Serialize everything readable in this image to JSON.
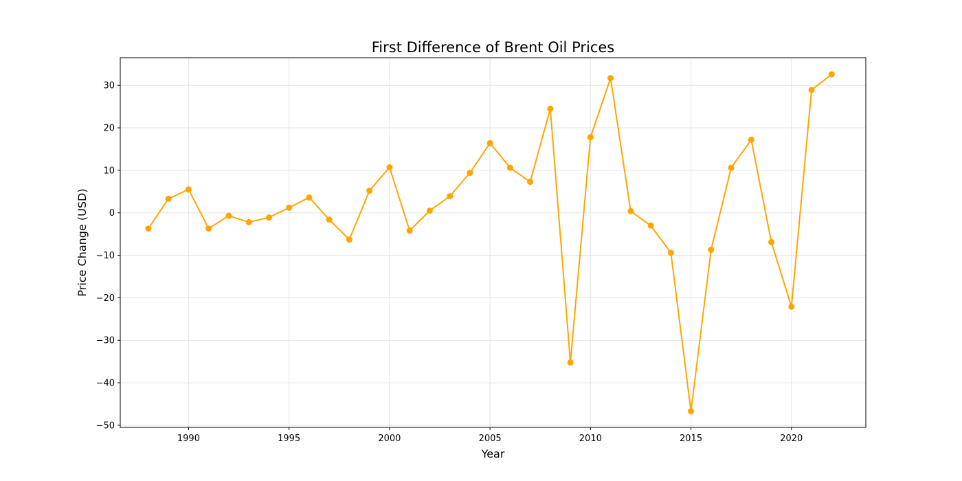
{
  "chart_data": {
    "type": "line",
    "title": "First Difference of Brent Oil Prices",
    "xlabel": "Year",
    "ylabel": "Price Change (USD)",
    "xlim": [
      1986.6,
      2023.7
    ],
    "ylim": [
      -50.5,
      36.5
    ],
    "xticks": [
      1990,
      1995,
      2000,
      2005,
      2010,
      2015,
      2020
    ],
    "yticks": [
      -50,
      -40,
      -30,
      -20,
      -10,
      0,
      10,
      20,
      30
    ],
    "grid": true,
    "color": "#ffa500",
    "marker": "circle",
    "series": [
      {
        "x": [
          1988,
          1989,
          1990,
          1991,
          1992,
          1993,
          1994,
          1995,
          1996,
          1997,
          1998,
          1999,
          2000,
          2001,
          2002,
          2003,
          2004,
          2005,
          2006,
          2007,
          2008,
          2009,
          2010,
          2011,
          2012,
          2013,
          2014,
          2015,
          2016,
          2017,
          2018,
          2019,
          2020,
          2021,
          2022
        ],
        "y": [
          -3.7,
          3.3,
          5.5,
          -3.7,
          -0.7,
          -2.2,
          -1.1,
          1.2,
          3.6,
          -1.6,
          -6.3,
          5.2,
          10.7,
          -4.2,
          0.5,
          3.9,
          9.4,
          16.4,
          10.6,
          7.3,
          24.5,
          -35.2,
          17.8,
          31.7,
          0.4,
          -3.0,
          -9.4,
          -46.7,
          -8.7,
          10.6,
          17.2,
          -6.9,
          -22.1,
          28.9,
          32.6
        ]
      }
    ]
  }
}
